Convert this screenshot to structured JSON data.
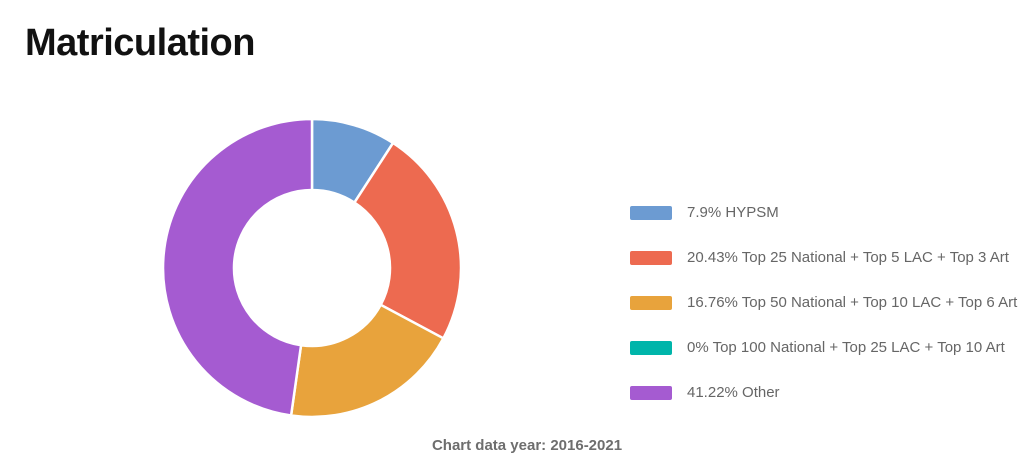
{
  "page": {
    "title": "Matriculation",
    "caption": "Chart data year: 2016-2021"
  },
  "chart_data": {
    "type": "pie",
    "subtype": "donut",
    "title": "Matriculation",
    "caption": "Chart data year: 2016-2021",
    "unit": "%",
    "labels": [
      "HYPSM",
      "Top 25 National + Top 5 LAC + Top 3 Art",
      "Top 50 National + Top 10 LAC + Top 6 Art",
      "Top 100 National + Top 25 LAC + Top 10 Art",
      "Other"
    ],
    "values": [
      7.9,
      20.43,
      16.76,
      0,
      41.22
    ],
    "colors": [
      "#6C9BD2",
      "#ED6A50",
      "#E8A33C",
      "#00B5AA",
      "#A55BD1"
    ],
    "start_angle_deg": 0,
    "clockwise": true,
    "inner_radius_ratio": 0.52,
    "segment_border_color": "#FFFFFF",
    "segment_border_width": 2.5,
    "legend_position": "right",
    "background": "#FFFFFF"
  },
  "legend": {
    "items": [
      {
        "text": "7.9% HYPSM",
        "color": "#6C9BD2"
      },
      {
        "text": "20.43% Top 25 National + Top 5 LAC + Top 3 Art",
        "color": "#ED6A50"
      },
      {
        "text": "16.76% Top 50 National + Top 10 LAC + Top 6 Art",
        "color": "#E8A33C"
      },
      {
        "text": "0% Top 100 National + Top 25 LAC + Top 10 Art",
        "color": "#00B5AA"
      },
      {
        "text": "41.22% Other",
        "color": "#A55BD1"
      }
    ]
  }
}
